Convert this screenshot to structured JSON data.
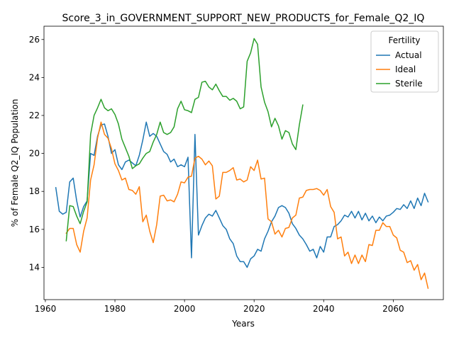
{
  "chart_data": {
    "type": "line",
    "title": "Score_3_in_GOVERNMENT_SUPPORT_NEW_PRODUCTS_for_Female_Q2_IQ",
    "xlabel": "Years",
    "ylabel": "% of Female Q2_IQ Population",
    "xlim": [
      1959.6,
      2074.4
    ],
    "ylim": [
      12.3,
      26.7
    ],
    "xticks": [
      1960,
      1980,
      2000,
      2020,
      2040,
      2060
    ],
    "yticks": [
      14,
      16,
      18,
      20,
      22,
      24,
      26
    ],
    "grid": false,
    "legend": {
      "title": "Fertility",
      "placement": "top-right"
    },
    "series": [
      {
        "name": "Actual",
        "color": "#1f77b4",
        "points": [
          [
            1963,
            18.2
          ],
          [
            1964,
            16.95
          ],
          [
            1965,
            16.8
          ],
          [
            1966,
            16.9
          ],
          [
            1967,
            18.5
          ],
          [
            1968,
            18.7
          ],
          [
            1969,
            17.5
          ],
          [
            1970,
            16.65
          ],
          [
            1971,
            17.2
          ],
          [
            1972,
            17.5
          ],
          [
            1973,
            20.0
          ],
          [
            1974,
            19.9
          ],
          [
            1975,
            20.9
          ],
          [
            1976,
            21.5
          ],
          [
            1977,
            21.55
          ],
          [
            1978,
            20.9
          ],
          [
            1979,
            20.0
          ],
          [
            1980,
            20.2
          ],
          [
            1981,
            19.4
          ],
          [
            1982,
            19.15
          ],
          [
            1983,
            19.55
          ],
          [
            1984,
            19.65
          ],
          [
            1985,
            19.5
          ],
          [
            1986,
            19.35
          ],
          [
            1987,
            19.9
          ],
          [
            1988,
            20.7
          ],
          [
            1989,
            21.65
          ],
          [
            1990,
            20.9
          ],
          [
            1991,
            21.05
          ],
          [
            1992,
            20.9
          ],
          [
            1993,
            20.5
          ],
          [
            1994,
            20.1
          ],
          [
            1995,
            19.95
          ],
          [
            1996,
            19.55
          ],
          [
            1997,
            19.7
          ],
          [
            1998,
            19.3
          ],
          [
            1999,
            19.4
          ],
          [
            2000,
            19.3
          ],
          [
            2001,
            19.8
          ],
          [
            2002,
            14.5
          ],
          [
            2003,
            21.0
          ],
          [
            2004,
            15.7
          ],
          [
            2005,
            16.2
          ],
          [
            2006,
            16.6
          ],
          [
            2007,
            16.8
          ],
          [
            2008,
            16.7
          ],
          [
            2009,
            17.0
          ],
          [
            2010,
            16.6
          ],
          [
            2011,
            16.2
          ],
          [
            2012,
            16.0
          ],
          [
            2013,
            15.5
          ],
          [
            2014,
            15.25
          ],
          [
            2015,
            14.6
          ],
          [
            2016,
            14.3
          ],
          [
            2017,
            14.3
          ],
          [
            2018,
            14.0
          ],
          [
            2019,
            14.45
          ],
          [
            2020,
            14.6
          ],
          [
            2021,
            14.95
          ],
          [
            2022,
            14.85
          ],
          [
            2023,
            15.5
          ],
          [
            2024,
            15.9
          ],
          [
            2025,
            16.4
          ],
          [
            2026,
            16.7
          ],
          [
            2027,
            17.15
          ],
          [
            2028,
            17.25
          ],
          [
            2029,
            17.15
          ],
          [
            2030,
            16.85
          ],
          [
            2031,
            16.3
          ],
          [
            2032,
            16.05
          ],
          [
            2033,
            15.7
          ],
          [
            2034,
            15.5
          ],
          [
            2035,
            15.2
          ],
          [
            2036,
            14.85
          ],
          [
            2037,
            14.95
          ],
          [
            2038,
            14.5
          ],
          [
            2039,
            15.1
          ],
          [
            2040,
            14.8
          ],
          [
            2041,
            15.6
          ],
          [
            2042,
            15.6
          ],
          [
            2043,
            16.15
          ],
          [
            2044,
            16.25
          ],
          [
            2045,
            16.45
          ],
          [
            2046,
            16.75
          ],
          [
            2047,
            16.65
          ],
          [
            2048,
            16.95
          ],
          [
            2049,
            16.6
          ],
          [
            2050,
            16.95
          ],
          [
            2051,
            16.5
          ],
          [
            2052,
            16.85
          ],
          [
            2053,
            16.45
          ],
          [
            2054,
            16.7
          ],
          [
            2055,
            16.35
          ],
          [
            2056,
            16.65
          ],
          [
            2057,
            16.45
          ],
          [
            2058,
            16.7
          ],
          [
            2059,
            16.75
          ],
          [
            2060,
            16.9
          ],
          [
            2061,
            17.1
          ],
          [
            2062,
            17.05
          ],
          [
            2063,
            17.3
          ],
          [
            2064,
            17.1
          ],
          [
            2065,
            17.5
          ],
          [
            2066,
            17.1
          ],
          [
            2067,
            17.65
          ],
          [
            2068,
            17.25
          ],
          [
            2069,
            17.9
          ],
          [
            2070,
            17.45
          ]
        ]
      },
      {
        "name": "Ideal",
        "color": "#ff7f0e",
        "points": [
          [
            1966,
            15.8
          ],
          [
            1967,
            16.05
          ],
          [
            1968,
            16.05
          ],
          [
            1969,
            15.2
          ],
          [
            1970,
            14.8
          ],
          [
            1971,
            15.9
          ],
          [
            1972,
            16.6
          ],
          [
            1973,
            18.6
          ],
          [
            1974,
            19.4
          ],
          [
            1975,
            20.8
          ],
          [
            1976,
            21.65
          ],
          [
            1977,
            21.0
          ],
          [
            1978,
            20.8
          ],
          [
            1979,
            20.25
          ],
          [
            1980,
            19.45
          ],
          [
            1981,
            19.1
          ],
          [
            1982,
            18.6
          ],
          [
            1983,
            18.7
          ],
          [
            1984,
            18.1
          ],
          [
            1985,
            18.05
          ],
          [
            1986,
            17.85
          ],
          [
            1987,
            18.25
          ],
          [
            1988,
            16.4
          ],
          [
            1989,
            16.75
          ],
          [
            1990,
            15.9
          ],
          [
            1991,
            15.3
          ],
          [
            1992,
            16.25
          ],
          [
            1993,
            17.75
          ],
          [
            1994,
            17.8
          ],
          [
            1995,
            17.5
          ],
          [
            1996,
            17.55
          ],
          [
            1997,
            17.45
          ],
          [
            1998,
            17.85
          ],
          [
            1999,
            18.5
          ],
          [
            2000,
            18.45
          ],
          [
            2001,
            18.75
          ],
          [
            2002,
            18.8
          ],
          [
            2003,
            19.75
          ],
          [
            2004,
            19.85
          ],
          [
            2005,
            19.7
          ],
          [
            2006,
            19.4
          ],
          [
            2007,
            19.6
          ],
          [
            2008,
            19.35
          ],
          [
            2009,
            17.6
          ],
          [
            2010,
            17.75
          ],
          [
            2011,
            19.0
          ],
          [
            2012,
            19.0
          ],
          [
            2013,
            19.1
          ],
          [
            2014,
            19.25
          ],
          [
            2015,
            18.6
          ],
          [
            2016,
            18.65
          ],
          [
            2017,
            18.5
          ],
          [
            2018,
            18.6
          ],
          [
            2019,
            19.3
          ],
          [
            2020,
            19.1
          ],
          [
            2021,
            19.65
          ],
          [
            2022,
            18.65
          ],
          [
            2023,
            18.7
          ],
          [
            2024,
            16.55
          ],
          [
            2025,
            16.4
          ],
          [
            2026,
            15.75
          ],
          [
            2027,
            15.95
          ],
          [
            2028,
            15.6
          ],
          [
            2029,
            16.05
          ],
          [
            2030,
            16.1
          ],
          [
            2031,
            16.6
          ],
          [
            2032,
            16.75
          ],
          [
            2033,
            17.65
          ],
          [
            2034,
            17.7
          ],
          [
            2035,
            18.05
          ],
          [
            2036,
            18.1
          ],
          [
            2037,
            18.1
          ],
          [
            2038,
            18.15
          ],
          [
            2039,
            18.05
          ],
          [
            2040,
            17.8
          ],
          [
            2041,
            18.1
          ],
          [
            2042,
            17.2
          ],
          [
            2043,
            16.9
          ],
          [
            2044,
            15.5
          ],
          [
            2045,
            15.6
          ],
          [
            2046,
            14.6
          ],
          [
            2047,
            14.8
          ],
          [
            2048,
            14.2
          ],
          [
            2049,
            14.65
          ],
          [
            2050,
            14.2
          ],
          [
            2051,
            14.65
          ],
          [
            2052,
            14.3
          ],
          [
            2053,
            15.2
          ],
          [
            2054,
            15.15
          ],
          [
            2055,
            15.95
          ],
          [
            2056,
            15.95
          ],
          [
            2057,
            16.35
          ],
          [
            2058,
            16.15
          ],
          [
            2059,
            16.15
          ],
          [
            2060,
            15.7
          ],
          [
            2061,
            15.55
          ],
          [
            2062,
            14.9
          ],
          [
            2063,
            14.8
          ],
          [
            2064,
            14.25
          ],
          [
            2065,
            14.35
          ],
          [
            2066,
            13.85
          ],
          [
            2067,
            14.15
          ],
          [
            2068,
            13.35
          ],
          [
            2069,
            13.7
          ],
          [
            2070,
            12.9
          ]
        ]
      },
      {
        "name": "Sterile",
        "color": "#2ca02c",
        "points": [
          [
            1966,
            15.4
          ],
          [
            1967,
            17.25
          ],
          [
            1968,
            17.2
          ],
          [
            1969,
            16.7
          ],
          [
            1970,
            16.3
          ],
          [
            1971,
            16.95
          ],
          [
            1972,
            17.45
          ],
          [
            1973,
            21.0
          ],
          [
            1974,
            22.0
          ],
          [
            1975,
            22.4
          ],
          [
            1976,
            22.85
          ],
          [
            1977,
            22.4
          ],
          [
            1978,
            22.25
          ],
          [
            1979,
            22.35
          ],
          [
            1980,
            22.05
          ],
          [
            1981,
            21.55
          ],
          [
            1982,
            20.75
          ],
          [
            1983,
            20.3
          ],
          [
            1984,
            19.85
          ],
          [
            1985,
            19.2
          ],
          [
            1986,
            19.35
          ],
          [
            1987,
            19.45
          ],
          [
            1988,
            19.75
          ],
          [
            1989,
            20.0
          ],
          [
            1990,
            20.1
          ],
          [
            1991,
            20.6
          ],
          [
            1992,
            21.0
          ],
          [
            1993,
            21.65
          ],
          [
            1994,
            21.1
          ],
          [
            1995,
            21.0
          ],
          [
            1996,
            21.1
          ],
          [
            1997,
            21.4
          ],
          [
            1998,
            22.35
          ],
          [
            1999,
            22.75
          ],
          [
            2000,
            22.3
          ],
          [
            2001,
            22.25
          ],
          [
            2002,
            22.15
          ],
          [
            2003,
            22.85
          ],
          [
            2004,
            22.95
          ],
          [
            2005,
            23.75
          ],
          [
            2006,
            23.8
          ],
          [
            2007,
            23.5
          ],
          [
            2008,
            23.35
          ],
          [
            2009,
            23.65
          ],
          [
            2010,
            23.3
          ],
          [
            2011,
            23.0
          ],
          [
            2012,
            23.0
          ],
          [
            2013,
            22.8
          ],
          [
            2014,
            22.9
          ],
          [
            2015,
            22.75
          ],
          [
            2016,
            22.35
          ],
          [
            2017,
            22.45
          ],
          [
            2018,
            24.85
          ],
          [
            2019,
            25.3
          ],
          [
            2020,
            26.05
          ],
          [
            2021,
            25.75
          ],
          [
            2022,
            23.5
          ],
          [
            2023,
            22.7
          ],
          [
            2024,
            22.2
          ],
          [
            2025,
            21.4
          ],
          [
            2026,
            21.85
          ],
          [
            2027,
            21.45
          ],
          [
            2028,
            20.75
          ],
          [
            2029,
            21.2
          ],
          [
            2030,
            21.1
          ],
          [
            2031,
            20.5
          ],
          [
            2032,
            20.2
          ],
          [
            2033,
            21.5
          ],
          [
            2034,
            22.55
          ]
        ]
      }
    ]
  }
}
